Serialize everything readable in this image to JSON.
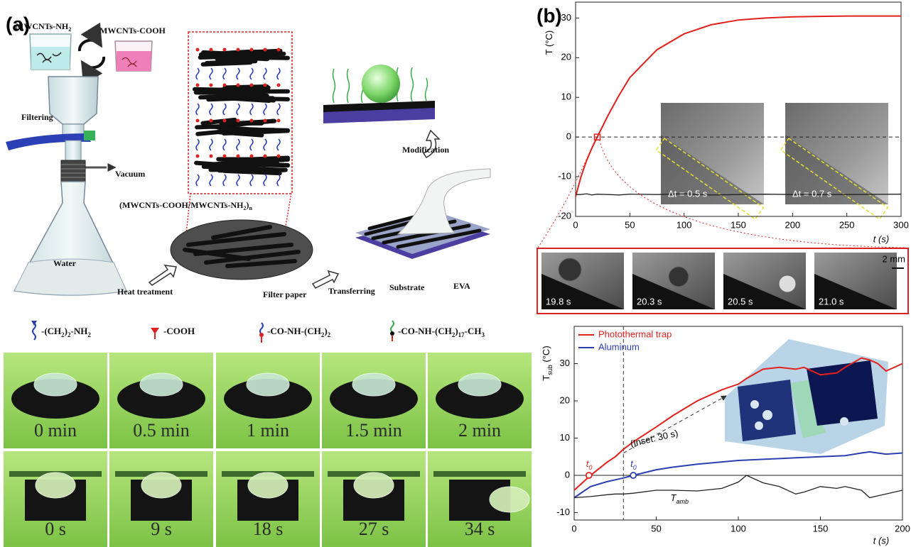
{
  "panel_a": {
    "label": "(a)",
    "labels": [
      [
        "MWCNTs-NH",
        "2"
      ],
      [
        "MWCNTs-COOH"
      ],
      [
        "Filtering"
      ],
      [
        "Vacuum"
      ],
      [
        "Water"
      ],
      [
        "Heat treatment"
      ],
      [
        "(MWCNTs-COOH/MWCNTs-NH",
        "2",
        ")",
        "n"
      ],
      [
        "Filter paper"
      ],
      [
        "Transferring"
      ],
      [
        "Substrate"
      ],
      [
        "EVA"
      ],
      [
        "Modification"
      ]
    ],
    "legend": [
      [
        "-(CH",
        "2",
        ")",
        "2",
        "-NH",
        "2"
      ],
      [
        "-COOH"
      ],
      [
        "-CO-NH-(CH",
        "2",
        ")",
        "2"
      ],
      [
        "-CO-NH-(CH",
        "2",
        ")",
        "17",
        "-CH",
        "3"
      ]
    ],
    "photo_rows": [
      [
        "0 min",
        "0.5 min",
        "1 min",
        "1.5 min",
        "2 min"
      ],
      [
        "0 s",
        "9 s",
        "18 s",
        "27 s",
        "34 s"
      ]
    ]
  },
  "panel_b": {
    "label": "(b)",
    "frames": [
      "19.8 s",
      "20.3 s",
      "20.5 s",
      "21.0 s"
    ],
    "scale_bar": "2 mm"
  },
  "chart_data": [
    {
      "type": "line",
      "x_label": "t (s)",
      "y_label": [
        "T (°C)"
      ],
      "x": [
        0,
        5,
        10,
        15,
        20,
        30,
        40,
        50,
        75,
        100,
        125,
        150,
        175,
        200,
        250,
        300
      ],
      "series": [
        {
          "color": "#e3211c",
          "values": [
            -15,
            -10,
            -6,
            -2.8,
            0,
            5.5,
            10.5,
            15,
            22,
            26,
            28.3,
            29.5,
            30,
            30.3,
            30.5,
            30.5
          ]
        },
        {
          "color": "#222222",
          "values": [
            -14.5,
            -14.5,
            -14.3,
            -14.6,
            -14.4,
            -14.5,
            -14.6,
            -14.4,
            -14.5,
            -14.3,
            -14.6,
            -14.5,
            -14.4,
            -14.5,
            -14.5,
            -14.4
          ]
        }
      ],
      "xlim": [
        0,
        300
      ],
      "xticks": [
        0,
        50,
        100,
        150,
        200,
        250,
        300
      ],
      "ylim": [
        -20,
        34
      ],
      "yticks": [
        -20,
        -10,
        0,
        10,
        20,
        30
      ],
      "hline": {
        "y": 0,
        "style": "dashed"
      },
      "zoom_point": [
        20,
        0
      ],
      "annotations": [
        "Δt = 0.5 s",
        "Δt = 0.7 s"
      ]
    },
    {
      "type": "line",
      "x_label": "t (s)",
      "y_label": [
        "T",
        "sub",
        " (°C)"
      ],
      "x": [
        0,
        10,
        20,
        25,
        30,
        36,
        50,
        60,
        75,
        90,
        100,
        105,
        115,
        125,
        135,
        140,
        150,
        160,
        165,
        175,
        180,
        185,
        190,
        200
      ],
      "series": [
        {
          "name": "Photothermal trap",
          "color": "#e3211c",
          "values": [
            -4,
            0,
            3.5,
            5,
            7,
            9,
            13,
            16,
            20,
            23,
            24.5,
            26,
            28.5,
            29,
            28.5,
            29,
            27,
            27.5,
            29,
            31.5,
            31,
            30,
            28,
            30
          ]
        },
        {
          "name": "Aluminum",
          "color": "#2b3fb3",
          "values": [
            -6,
            -3,
            -1.7,
            -1.2,
            -0.7,
            0,
            1.5,
            2.2,
            3,
            3.6,
            4,
            4.1,
            4.3,
            4.5,
            4.7,
            4.8,
            5,
            5.2,
            5.3,
            6,
            6.3,
            6,
            5.7,
            6
          ]
        },
        {
          "label_parts": [
            "T",
            "amb"
          ],
          "color": "#222222",
          "values": [
            -6,
            -5.7,
            -5.2,
            -5,
            -5,
            -4.8,
            -4,
            -4,
            -4.2,
            -3.5,
            -1.8,
            0,
            -2,
            -3,
            -5,
            -4.5,
            -3,
            -3.5,
            -3,
            -4,
            -6,
            -5.5,
            -5,
            -4
          ]
        }
      ],
      "xlim": [
        0,
        200
      ],
      "xticks": [
        0,
        50,
        100,
        150,
        200
      ],
      "ylim": [
        -12,
        40
      ],
      "yticks": [
        -10,
        0,
        10,
        20,
        30
      ],
      "hline": {
        "y": 0,
        "style": "solid"
      },
      "vline": {
        "x": 30,
        "style": "dashed"
      },
      "legend": "upper left",
      "annotation": "(Inset: 30 s)",
      "t0_label": [
        "t",
        "0"
      ],
      "t0_markers": [
        {
          "x": 9,
          "y": 0,
          "series": 0
        },
        {
          "x": 36,
          "y": 0,
          "series": 1
        }
      ]
    }
  ]
}
